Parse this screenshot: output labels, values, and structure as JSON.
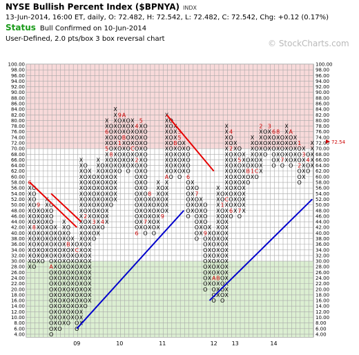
{
  "header": {
    "title": "NYSE Bullish Percent Index ($BPNYA)",
    "exchange_tag": "INDX",
    "quote_line": "13-Jun-2014, 16:00 ET, daily, O: 72.482, H: 72.542, L: 72.482, C: 72.542, Chg: +0.12 (0.17%)",
    "status_label": "Status",
    "status_text": "Bull Confirmed on 10-Jun-2014",
    "chart_type": "User-Defined, 2.0 pts/box 3 box reversal chart",
    "brand": "© StockCharts.com"
  },
  "colors": {
    "x_mark": "#000000",
    "o_mark": "#000000",
    "month_mark": "#cc0000",
    "overbought_zone": "#f8dada",
    "oversold_zone": "#dcefd2",
    "resistance_line": "#e60000",
    "support_line": "#0000cc",
    "grid": "#a8a8a8",
    "status": "#1a9a1a"
  },
  "chart_data": {
    "type": "point-and-figure",
    "box_size": 2,
    "reversal": 3,
    "y_range": [
      4,
      100
    ],
    "y_ticks": [
      "4.00",
      "6.00",
      "8.00",
      "10.00",
      "12.00",
      "14.00",
      "16.00",
      "18.00",
      "20.00",
      "22.00",
      "24.00",
      "26.00",
      "28.00",
      "30.00",
      "32.00",
      "34.00",
      "36.00",
      "38.00",
      "40.00",
      "42.00",
      "44.00",
      "46.00",
      "48.00",
      "50.00",
      "52.00",
      "54.00",
      "56.00",
      "58.00",
      "60.00",
      "62.00",
      "64.00",
      "66.00",
      "68.00",
      "70.00",
      "72.00",
      "74.00",
      "76.00",
      "78.00",
      "80.00",
      "82.00",
      "84.00",
      "86.00",
      "88.00",
      "90.00",
      "92.00",
      "94.00",
      "96.00",
      "98.00",
      "100.00"
    ],
    "x_labels": [
      {
        "col": 11,
        "text": "09"
      },
      {
        "col": 21,
        "text": "10"
      },
      {
        "col": 31,
        "text": "11"
      },
      {
        "col": 43,
        "text": "12"
      },
      {
        "col": 48,
        "text": "13"
      },
      {
        "col": 57,
        "text": "14"
      }
    ],
    "zones": [
      {
        "name": "overbought",
        "from": 70,
        "to": 100
      },
      {
        "name": "oversold",
        "from": 0,
        "to": 30
      }
    ],
    "current_value_label": "72.54",
    "current_value": 72.54,
    "columns": [
      {
        "type": "X",
        "low": 28,
        "high": 58,
        "marks": {
          "58": "6"
        }
      },
      {
        "type": "O",
        "low": 28,
        "high": 56,
        "marks": {
          "42": "8"
        }
      },
      {
        "type": "X",
        "low": 30,
        "high": 50,
        "marks": {
          "50": "9"
        }
      },
      {
        "type": "O",
        "low": 30,
        "high": 48
      },
      {
        "type": "X",
        "low": 32,
        "high": 52
      },
      {
        "type": "O",
        "low": 4,
        "high": 50,
        "marks": {
          "28": "A"
        }
      },
      {
        "type": "X",
        "low": 6,
        "high": 42
      },
      {
        "type": "O",
        "low": 6,
        "high": 40
      },
      {
        "type": "X",
        "low": 8,
        "high": 44
      },
      {
        "type": "O",
        "low": 8,
        "high": 42,
        "marks": {
          "36": "B"
        }
      },
      {
        "type": "X",
        "low": 10,
        "high": 38
      },
      {
        "type": "O",
        "low": 6,
        "high": 36,
        "marks": {
          "34": "C"
        }
      },
      {
        "type": "X",
        "low": 8,
        "high": 66
      },
      {
        "type": "O",
        "low": 14,
        "high": 64,
        "marks": {
          "46": "2"
        }
      },
      {
        "type": "X",
        "low": 16,
        "high": 62
      },
      {
        "type": "O",
        "low": 38,
        "high": 60,
        "marks": {
          "44": "3"
        }
      },
      {
        "type": "X",
        "low": 40,
        "high": 66
      },
      {
        "type": "O",
        "low": 42,
        "high": 64,
        "marks": {
          "44": "4"
        }
      },
      {
        "type": "X",
        "low": 44,
        "high": 80,
        "marks": {
          "70": "5",
          "76": "6"
        }
      },
      {
        "type": "O",
        "low": 50,
        "high": 78,
        "marks": {
          "68": "8"
        }
      },
      {
        "type": "X",
        "low": 52,
        "high": 84
      },
      {
        "type": "O",
        "low": 62,
        "high": 82,
        "marks": {
          "82": "9",
          "72": "1"
        }
      },
      {
        "type": "X",
        "low": 64,
        "high": 82,
        "marks": {
          "82": "A",
          "74": "B"
        }
      },
      {
        "type": "O",
        "low": 62,
        "high": 80
      },
      {
        "type": "X",
        "low": 64,
        "high": 80,
        "marks": {
          "70": "C"
        }
      },
      {
        "type": "O",
        "low": 40,
        "high": 78,
        "marks": {
          "66": "2",
          "78": "4",
          "40": "6"
        }
      },
      {
        "type": "X",
        "low": 42,
        "high": 80,
        "marks": {
          "80": "5"
        }
      },
      {
        "type": "O",
        "low": 40,
        "high": 78,
        "marks": {
          "44": "7"
        }
      },
      {
        "type": "X",
        "low": 42,
        "high": 54,
        "marks": {
          "54": "8"
        }
      },
      {
        "type": "O",
        "low": 40,
        "high": 52
      },
      {
        "type": "X",
        "low": 42,
        "high": 58
      },
      {
        "type": "O",
        "low": 46,
        "high": 56,
        "marks": {
          "46": "9"
        }
      },
      {
        "type": "X",
        "low": 48,
        "high": 82,
        "marks": {
          "60": "A"
        }
      },
      {
        "type": "O",
        "low": 60,
        "high": 80
      },
      {
        "type": "X",
        "low": 62,
        "high": 78,
        "marks": {
          "72": "B"
        }
      },
      {
        "type": "O",
        "low": 60,
        "high": 76,
        "marks": {
          "76": "3",
          "74": "5"
        }
      },
      {
        "type": "X",
        "low": 62,
        "high": 72
      },
      {
        "type": "O",
        "low": 46,
        "high": 70,
        "marks": {
          "60": "6"
        }
      },
      {
        "type": "X",
        "low": 48,
        "high": 58
      },
      {
        "type": "O",
        "low": 38,
        "high": 56,
        "marks": {
          "54": "7"
        }
      },
      {
        "type": "X",
        "low": 40,
        "high": 52
      },
      {
        "type": "O",
        "low": 20,
        "high": 50,
        "marks": {
          "40": "9"
        }
      },
      {
        "type": "X",
        "low": 22,
        "high": 42
      },
      {
        "type": "O",
        "low": 16,
        "high": 40,
        "marks": {
          "24": "A"
        }
      },
      {
        "type": "X",
        "low": 18,
        "high": 56,
        "marks": {
          "24": "B"
        }
      },
      {
        "type": "O",
        "low": 16,
        "high": 54,
        "marks": {
          "56": "8",
          "50": "1"
        }
      },
      {
        "type": "X",
        "low": 18,
        "high": 78,
        "marks": {
          "52": "C"
        }
      },
      {
        "type": "O",
        "low": 46,
        "high": 76,
        "marks": {
          "76": "4",
          "70": "2",
          "48": "6"
        }
      },
      {
        "type": "X",
        "low": 48,
        "high": 72
      },
      {
        "type": "O",
        "low": 46,
        "high": 70,
        "marks": {
          "66": "5",
          "48": "7"
        }
      },
      {
        "type": "X",
        "low": 48,
        "high": 68
      },
      {
        "type": "O",
        "low": 58,
        "high": 66,
        "marks": {
          "62": "B"
        }
      },
      {
        "type": "X",
        "low": 60,
        "high": 74,
        "marks": {
          "62": "1"
        }
      },
      {
        "type": "O",
        "low": 60,
        "high": 72,
        "marks": {
          "62": "C"
        }
      },
      {
        "type": "X",
        "low": 62,
        "high": 78,
        "marks": {
          "78": "2"
        }
      },
      {
        "type": "O",
        "low": 68,
        "high": 76
      },
      {
        "type": "X",
        "low": 70,
        "high": 78,
        "marks": {
          "78": "3"
        }
      },
      {
        "type": "O",
        "low": 64,
        "high": 76,
        "marks": {
          "76": "6"
        }
      },
      {
        "type": "X",
        "low": 66,
        "high": 76,
        "marks": {
          "76": "8"
        }
      },
      {
        "type": "O",
        "low": 64,
        "high": 74,
        "marks": {
          "66": "7"
        }
      },
      {
        "type": "X",
        "low": 66,
        "high": 78
      },
      {
        "type": "O",
        "low": 64,
        "high": 76,
        "marks": {
          "76": "A"
        }
      },
      {
        "type": "X",
        "low": 66,
        "high": 74
      },
      {
        "type": "O",
        "low": 58,
        "high": 72,
        "marks": {
          "72": "1",
          "64": "2"
        }
      },
      {
        "type": "X",
        "low": 60,
        "high": 70,
        "marks": {
          "68": "3"
        }
      },
      {
        "type": "O",
        "low": 62,
        "high": 68,
        "marks": {
          "66": "4"
        }
      },
      {
        "type": "X",
        "low": 64,
        "high": 72
      }
    ],
    "trendlines": [
      {
        "type": "resistance",
        "points": [
          [
            0,
            58
          ],
          [
            11,
            42
          ]
        ]
      },
      {
        "type": "resistance",
        "points": [
          [
            5,
            54
          ],
          [
            12,
            44
          ]
        ]
      },
      {
        "type": "support",
        "points": [
          [
            11,
            6
          ],
          [
            36,
            48
          ]
        ]
      },
      {
        "type": "resistance",
        "points": [
          [
            32,
            82
          ],
          [
            43,
            62
          ]
        ]
      },
      {
        "type": "support",
        "points": [
          [
            42,
            16
          ],
          [
            66,
            52
          ]
        ]
      }
    ]
  }
}
